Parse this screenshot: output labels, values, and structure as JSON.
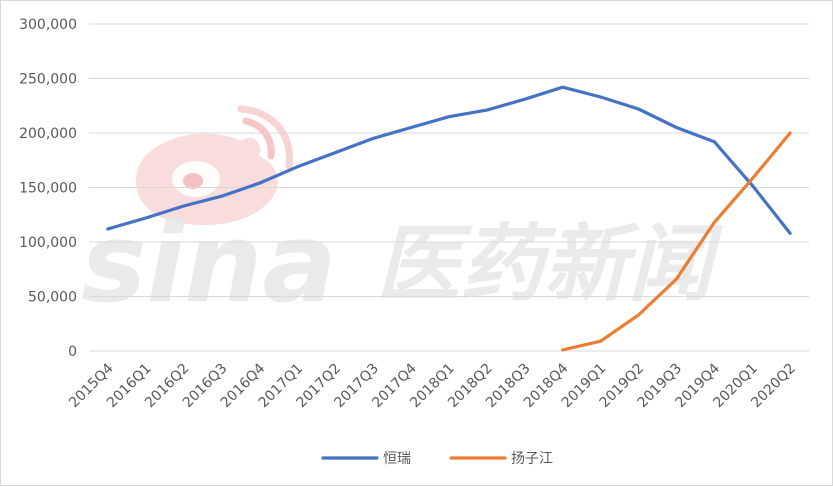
{
  "chart_data": {
    "type": "line",
    "categories": [
      "2015Q4",
      "2016Q1",
      "2016Q2",
      "2016Q3",
      "2016Q4",
      "2017Q1",
      "2017Q2",
      "2017Q3",
      "2017Q4",
      "2018Q1",
      "2018Q2",
      "2018Q3",
      "2018Q4",
      "2019Q1",
      "2019Q2",
      "2019Q3",
      "2019Q4",
      "2020Q1",
      "2020Q2"
    ],
    "series": [
      {
        "name": "恒瑞",
        "color": "#4472C4",
        "values": [
          112000,
          122000,
          133000,
          142000,
          154000,
          169000,
          182000,
          195000,
          205000,
          215000,
          221000,
          231000,
          242000,
          233000,
          222000,
          205000,
          192000,
          152000,
          108000
        ]
      },
      {
        "name": "扬子江",
        "color": "#ED7D31",
        "values": [
          null,
          null,
          null,
          null,
          null,
          null,
          null,
          null,
          null,
          null,
          null,
          null,
          1000,
          9000,
          33000,
          66000,
          118000,
          158000,
          200000
        ]
      }
    ],
    "yticks": [
      "0",
      "50,000",
      "100,000",
      "150,000",
      "200,000",
      "250,000",
      "300,000"
    ],
    "ylim": [
      0,
      300000
    ],
    "grid": true,
    "legend": "bottom"
  },
  "watermark": {
    "brand": "sina",
    "text": "医药新闻",
    "icon": "weibo-eye-icon",
    "color": "#e6e6e6",
    "icon_color": "#f6c9c9"
  }
}
